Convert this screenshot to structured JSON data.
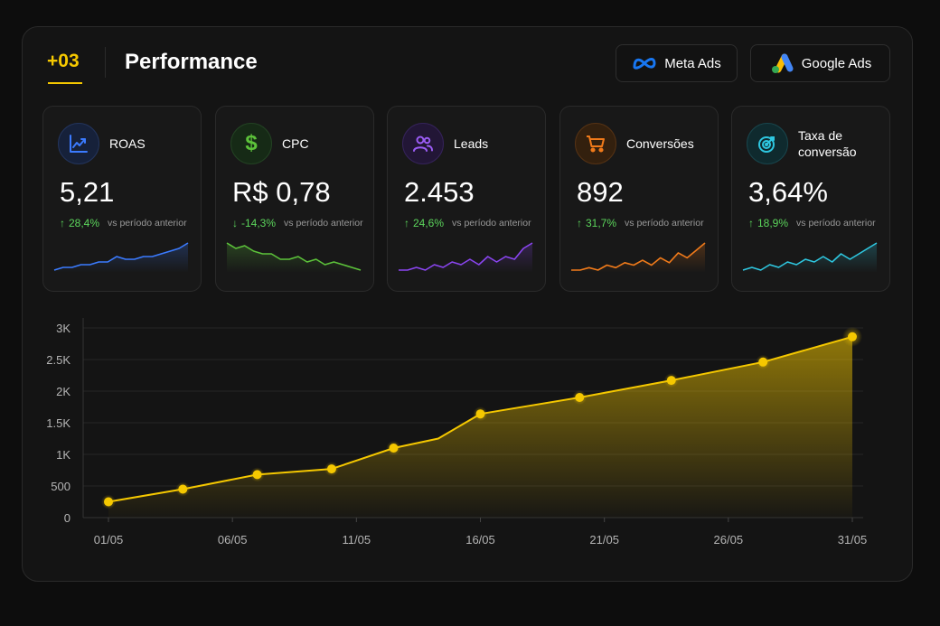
{
  "header": {
    "badge": "+03",
    "title": "Performance",
    "buttons": [
      {
        "label": "Meta Ads",
        "icon": "meta-logo-icon"
      },
      {
        "label": "Google Ads",
        "icon": "google-ads-logo-icon"
      }
    ]
  },
  "cards": [
    {
      "label": "ROAS",
      "value": "5,21",
      "delta": "28,4%",
      "direction": "up",
      "vs": "vs período anterior",
      "icon": "trend-chart-icon",
      "color": "#3b7bff",
      "spark": [
        2,
        3,
        3,
        4,
        4,
        5,
        5,
        7,
        6,
        6,
        7,
        7,
        8,
        9,
        10,
        12
      ]
    },
    {
      "label": "CPC",
      "value": "R$ 0,78",
      "delta": "-14,3%",
      "direction": "down",
      "vs": "vs período anterior",
      "icon": "dollar-icon",
      "color": "#5cc23a",
      "spark": [
        12,
        10,
        11,
        9,
        8,
        8,
        6,
        6,
        7,
        5,
        6,
        4,
        5,
        4,
        3,
        2
      ]
    },
    {
      "label": "Leads",
      "value": "2.453",
      "delta": "24,6%",
      "direction": "up",
      "vs": "vs período anterior",
      "icon": "users-icon",
      "color": "#8a45f0",
      "spark": [
        2,
        2,
        3,
        2,
        4,
        3,
        5,
        4,
        6,
        4,
        7,
        5,
        7,
        6,
        10,
        12
      ]
    },
    {
      "label": "Conversões",
      "value": "892",
      "delta": "31,7%",
      "direction": "up",
      "vs": "vs período anterior",
      "icon": "cart-icon",
      "color": "#f07a1a",
      "spark": [
        2,
        2,
        3,
        2,
        4,
        3,
        5,
        4,
        6,
        4,
        7,
        5,
        9,
        7,
        10,
        13
      ]
    },
    {
      "label": "Taxa de conversão",
      "value": "3,64%",
      "delta": "18,9%",
      "direction": "up",
      "vs": "vs período anterior",
      "icon": "target-icon",
      "color": "#2ec7e0",
      "spark": [
        2,
        3,
        2,
        4,
        3,
        5,
        4,
        6,
        5,
        7,
        5,
        8,
        6,
        8,
        10,
        12
      ]
    }
  ],
  "colors": {
    "accent": "#f5c800",
    "up": "#5cd65c",
    "down": "#5cd65c"
  },
  "chart_data": {
    "type": "area",
    "y_ticks": [
      "0",
      "500",
      "1K",
      "1.5K",
      "2K",
      "2.5K",
      "3K"
    ],
    "ylim": [
      0,
      3000
    ],
    "x_ticks": [
      "01/05",
      "06/05",
      "11/05",
      "16/05",
      "21/05",
      "26/05",
      "31/05"
    ],
    "xlim": [
      1,
      31
    ],
    "grid": true,
    "x": [
      1,
      4,
      7,
      10,
      12.5,
      14.3,
      16,
      20,
      23.7,
      27.4,
      31
    ],
    "values": [
      250,
      450,
      680,
      770,
      1100,
      1250,
      1640,
      1900,
      2170,
      2460,
      2860
    ],
    "markers": [
      true,
      true,
      true,
      true,
      true,
      false,
      true,
      true,
      true,
      true,
      true
    ]
  }
}
